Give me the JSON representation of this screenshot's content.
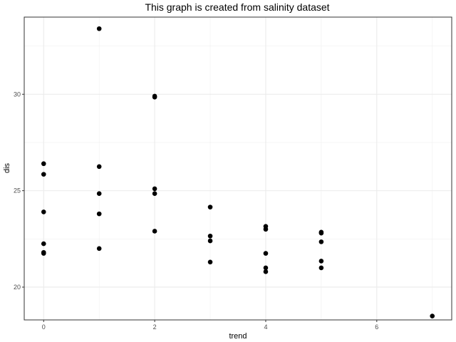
{
  "chart_data": {
    "type": "scatter",
    "title": "This graph is created from salinity dataset",
    "xlabel": "trend",
    "ylabel": "dis",
    "xlim": [
      -0.35,
      7.35
    ],
    "ylim": [
      18.3,
      34.0
    ],
    "x_ticks": [
      0,
      2,
      4,
      6
    ],
    "y_ticks": [
      20,
      25,
      30
    ],
    "x_tick_labels": [
      "0",
      "2",
      "4",
      "6"
    ],
    "y_tick_labels": [
      "20",
      "25",
      "30"
    ],
    "grid": true,
    "legend": "none",
    "point_color": "#000000",
    "points": [
      {
        "x": 0,
        "y": 26.4
      },
      {
        "x": 0,
        "y": 25.85
      },
      {
        "x": 0,
        "y": 23.9
      },
      {
        "x": 0,
        "y": 22.25
      },
      {
        "x": 0,
        "y": 21.8
      },
      {
        "x": 0,
        "y": 21.75
      },
      {
        "x": 1,
        "y": 33.4
      },
      {
        "x": 1,
        "y": 26.25
      },
      {
        "x": 1,
        "y": 24.85
      },
      {
        "x": 1,
        "y": 23.8
      },
      {
        "x": 1,
        "y": 22.0
      },
      {
        "x": 2,
        "y": 29.9
      },
      {
        "x": 2,
        "y": 29.85
      },
      {
        "x": 2,
        "y": 25.1
      },
      {
        "x": 2,
        "y": 24.85
      },
      {
        "x": 2,
        "y": 22.9
      },
      {
        "x": 3,
        "y": 24.15
      },
      {
        "x": 3,
        "y": 22.65
      },
      {
        "x": 3,
        "y": 22.4
      },
      {
        "x": 3,
        "y": 21.3
      },
      {
        "x": 4,
        "y": 23.15
      },
      {
        "x": 4,
        "y": 23.0
      },
      {
        "x": 4,
        "y": 21.75
      },
      {
        "x": 4,
        "y": 21.0
      },
      {
        "x": 4,
        "y": 20.8
      },
      {
        "x": 5,
        "y": 22.85
      },
      {
        "x": 5,
        "y": 22.8
      },
      {
        "x": 5,
        "y": 22.35
      },
      {
        "x": 5,
        "y": 21.35
      },
      {
        "x": 5,
        "y": 21.0
      },
      {
        "x": 7,
        "y": 18.5
      }
    ]
  }
}
